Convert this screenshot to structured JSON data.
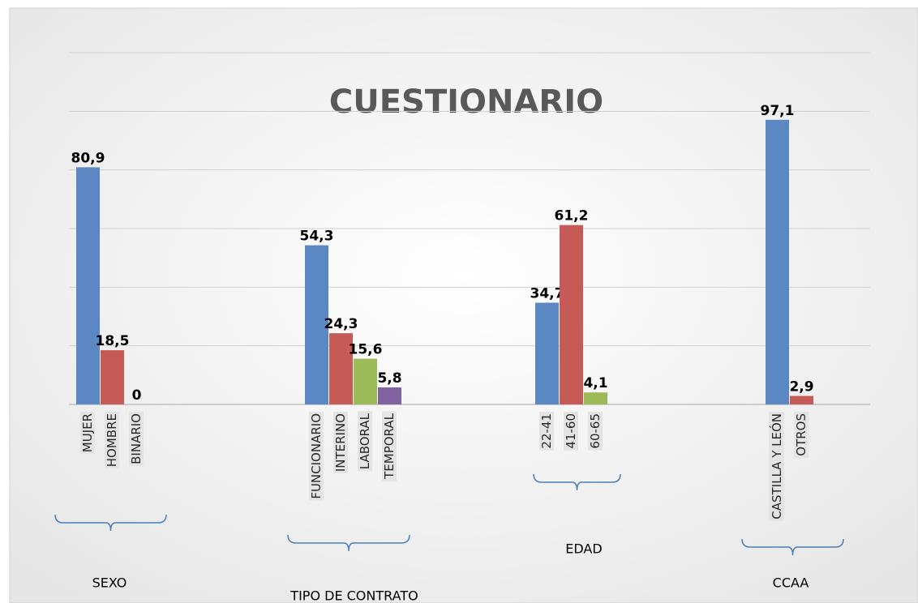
{
  "chart_data": {
    "type": "bar",
    "title": "CUESTIONARIO",
    "ylim": [
      0,
      120
    ],
    "yticks": [
      0,
      20,
      40,
      60,
      80,
      100,
      120
    ],
    "grid": true,
    "groups": [
      {
        "name": "SEXO",
        "categories": [
          "MUJER",
          "HOMBRE",
          "BINARIO"
        ],
        "values": [
          80.9,
          18.5,
          0
        ],
        "value_labels": [
          "80,9",
          "18,5",
          "0"
        ],
        "colors": [
          "#5b87c2",
          "#c55a56",
          "#9bbb59"
        ]
      },
      {
        "name": "TIPO DE CONTRATO",
        "categories": [
          "FUNCIONARIO",
          "INTERINO",
          "LABORAL",
          "TEMPORAL"
        ],
        "values": [
          54.3,
          24.3,
          15.6,
          5.8
        ],
        "value_labels": [
          "54,3",
          "24,3",
          "15,6",
          "5,8"
        ],
        "colors": [
          "#5b87c2",
          "#c55a56",
          "#9bbb59",
          "#8064a2"
        ]
      },
      {
        "name": "EDAD",
        "categories": [
          "22-41",
          "41-60",
          "60-65"
        ],
        "values": [
          34.7,
          61.2,
          4.1
        ],
        "value_labels": [
          "34,7",
          "61,2",
          "4,1"
        ],
        "colors": [
          "#5b87c2",
          "#c55a56",
          "#9bbb59"
        ]
      },
      {
        "name": "CCAA",
        "categories": [
          "CASTILLA Y LEÓN",
          "OTROS"
        ],
        "values": [
          97.1,
          2.9
        ],
        "value_labels": [
          "97,1",
          "2,9"
        ],
        "colors": [
          "#5b87c2",
          "#c55a56"
        ]
      }
    ]
  }
}
